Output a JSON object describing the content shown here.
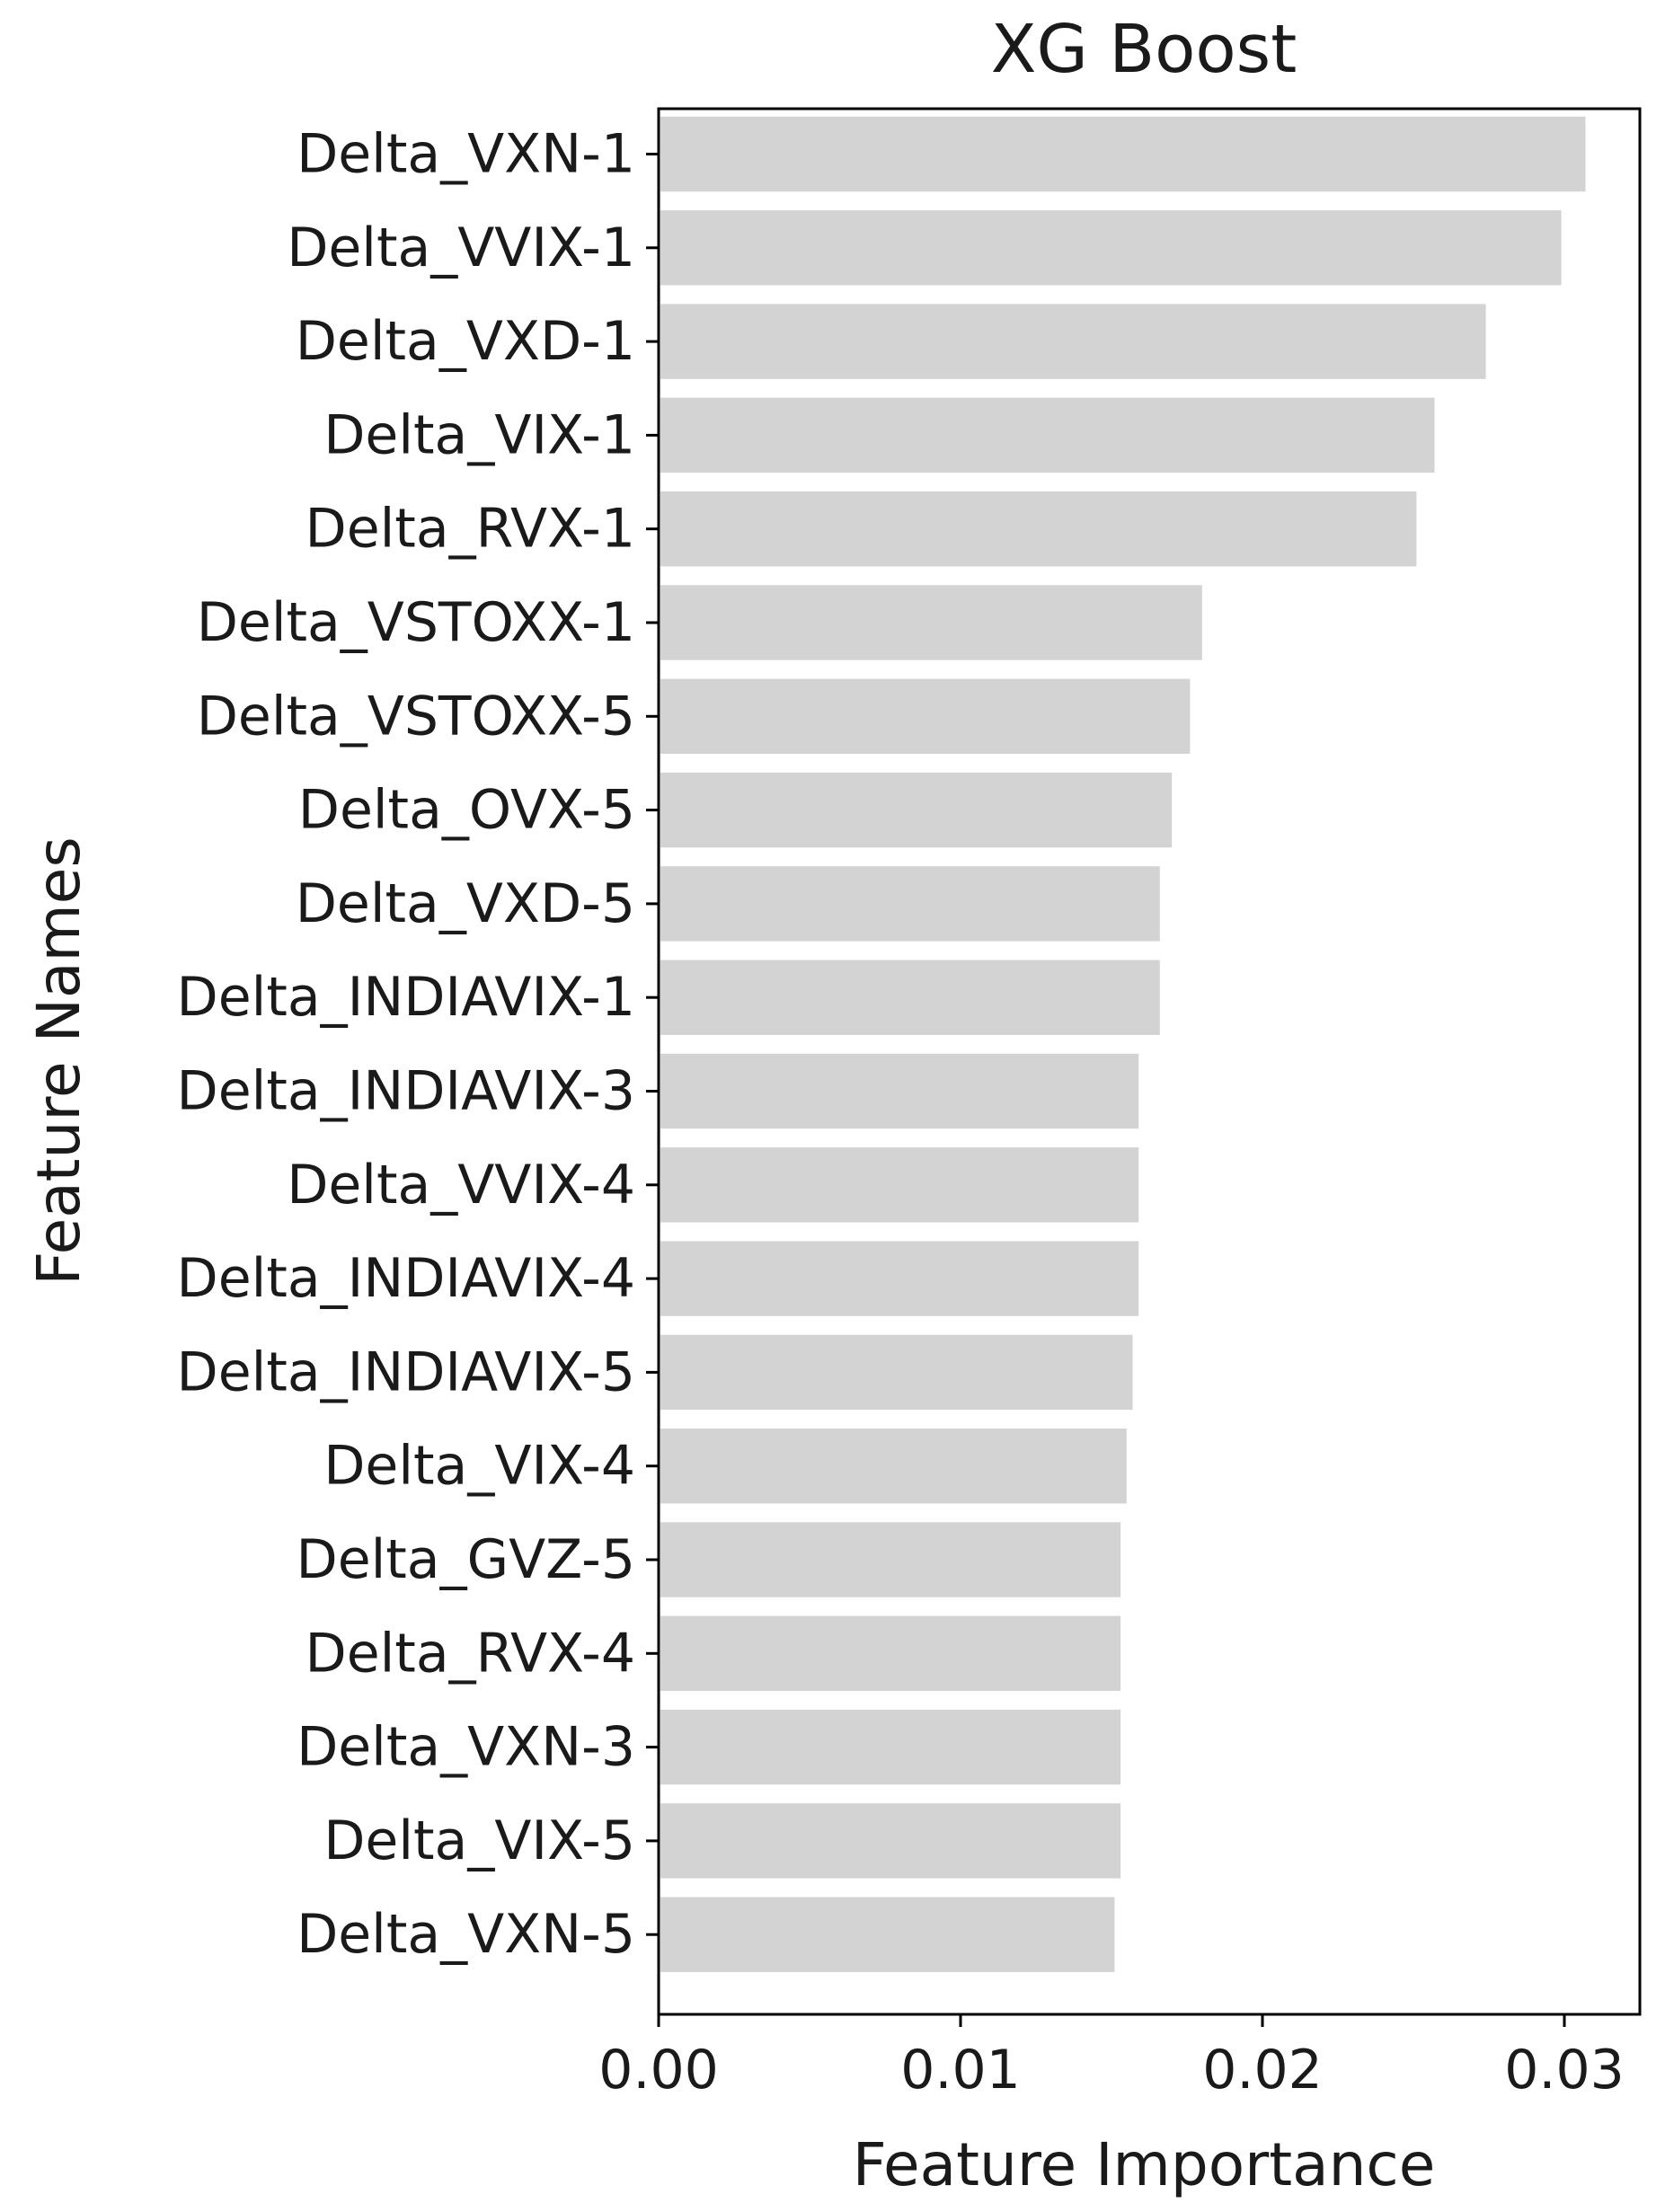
{
  "chart_data": {
    "type": "bar",
    "orientation": "horizontal",
    "title": "XG Boost",
    "xlabel": "Feature Importance",
    "ylabel": "Feature Names",
    "xlim": [
      0,
      0.0325
    ],
    "xticks": [
      "0.00",
      "0.01",
      "0.02",
      "0.03"
    ],
    "xtick_values": [
      0,
      0.01,
      0.02,
      0.03
    ],
    "grid": false,
    "bar_color": "#d3d3d3",
    "categories": [
      "Delta_VXN-1",
      "Delta_VVIX-1",
      "Delta_VXD-1",
      "Delta_VIX-1",
      "Delta_RVX-1",
      "Delta_VSTOXX-1",
      "Delta_VSTOXX-5",
      "Delta_OVX-5",
      "Delta_VXD-5",
      "Delta_INDIAVIX-1",
      "Delta_INDIAVIX-3",
      "Delta_VVIX-4",
      "Delta_INDIAVIX-4",
      "Delta_INDIAVIX-5",
      "Delta_VIX-4",
      "Delta_GVZ-5",
      "Delta_RVX-4",
      "Delta_VXN-3",
      "Delta_VIX-5",
      "Delta_VXN-5"
    ],
    "values": [
      0.0307,
      0.0299,
      0.0274,
      0.0257,
      0.0251,
      0.018,
      0.0176,
      0.017,
      0.0166,
      0.0166,
      0.0159,
      0.0159,
      0.0159,
      0.0157,
      0.0155,
      0.0153,
      0.0153,
      0.0153,
      0.0153,
      0.0151
    ]
  }
}
